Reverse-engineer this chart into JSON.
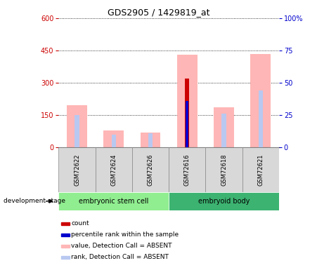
{
  "title": "GDS2905 / 1429819_at",
  "samples": [
    "GSM72622",
    "GSM72624",
    "GSM72626",
    "GSM72616",
    "GSM72618",
    "GSM72621"
  ],
  "group_labels": [
    "embryonic stem cell",
    "embryoid body"
  ],
  "group_colors": [
    "#90ee90",
    "#3cb371"
  ],
  "left_ylim": [
    0,
    600
  ],
  "left_yticks": [
    0,
    150,
    300,
    450,
    600
  ],
  "right_ylim": [
    0,
    100
  ],
  "right_yticks": [
    0,
    25,
    50,
    75,
    100
  ],
  "left_tick_color": "#cc0000",
  "right_tick_color": "#0000cc",
  "value_absent": [
    195,
    80,
    70,
    430,
    185,
    435
  ],
  "rank_absent_pct": [
    25,
    10,
    11,
    36,
    26,
    44
  ],
  "count_value": [
    0,
    0,
    0,
    320,
    0,
    0
  ],
  "percentile_rank_pct": [
    0,
    0,
    0,
    36,
    0,
    0
  ],
  "count_color": "#cc0000",
  "percentile_color": "#0000cc",
  "value_absent_color": "#ffb6b6",
  "rank_absent_color": "#b8c8f0",
  "sample_bg_color": "#d8d8d8",
  "legend_items": [
    {
      "label": "count",
      "color": "#cc0000"
    },
    {
      "label": "percentile rank within the sample",
      "color": "#0000cc"
    },
    {
      "label": "value, Detection Call = ABSENT",
      "color": "#ffb6b6"
    },
    {
      "label": "rank, Detection Call = ABSENT",
      "color": "#b8c8f0"
    }
  ]
}
